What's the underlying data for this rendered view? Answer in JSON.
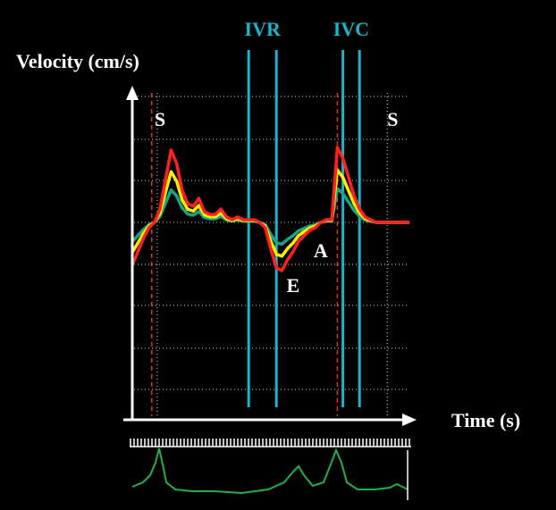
{
  "chart_data": {
    "type": "line",
    "ylabel": "Velocity (cm/s)",
    "xlabel": "Time (s)",
    "grid": "dotted horizontal",
    "background": "#000000",
    "wave_labels": [
      {
        "text": "S",
        "x": 0.1,
        "y": 3.6
      },
      {
        "text": "A",
        "x": 0.68,
        "y": -1.3
      },
      {
        "text": "E",
        "x": 0.58,
        "y": -2.6
      },
      {
        "text": "S",
        "x": 0.94,
        "y": 3.6
      }
    ],
    "intervals": [
      {
        "label": "IVR",
        "start": 0.42,
        "end": 0.52
      },
      {
        "label": "IVC",
        "start": 0.76,
        "end": 0.82
      }
    ],
    "dashed_markers": [
      0.07,
      0.74
    ],
    "dotted_markers": [
      0.09,
      0.92
    ],
    "series": [
      {
        "color": "#ff2020",
        "x": [
          0,
          0.02,
          0.04,
          0.06,
          0.08,
          0.1,
          0.12,
          0.14,
          0.16,
          0.18,
          0.2,
          0.22,
          0.24,
          0.26,
          0.28,
          0.3,
          0.32,
          0.34,
          0.36,
          0.38,
          0.4,
          0.42,
          0.44,
          0.46,
          0.48,
          0.5,
          0.52,
          0.54,
          0.56,
          0.58,
          0.6,
          0.62,
          0.64,
          0.66,
          0.68,
          0.7,
          0.72,
          0.74,
          0.76,
          0.78,
          0.8,
          0.82,
          0.84,
          0.86,
          0.88,
          0.9,
          0.92,
          0.94,
          0.96,
          0.98,
          1.0
        ],
        "y": [
          -1.6,
          -1.1,
          -0.6,
          -0.2,
          0.0,
          0.5,
          1.6,
          2.7,
          2.2,
          1.2,
          0.7,
          0.6,
          0.9,
          0.4,
          0.3,
          0.3,
          0.5,
          0.2,
          0.1,
          0.2,
          0.1,
          0.1,
          0.1,
          0.0,
          -0.2,
          -1.0,
          -1.7,
          -1.8,
          -1.4,
          -1.1,
          -0.7,
          -0.5,
          -0.3,
          -0.2,
          0.0,
          0.1,
          0.1,
          2.8,
          2.4,
          1.7,
          1.0,
          0.5,
          0.2,
          0.1,
          0.0,
          0.0,
          0.0,
          0.0,
          0.0,
          0.0,
          0.0
        ]
      }
    ]
  }
}
